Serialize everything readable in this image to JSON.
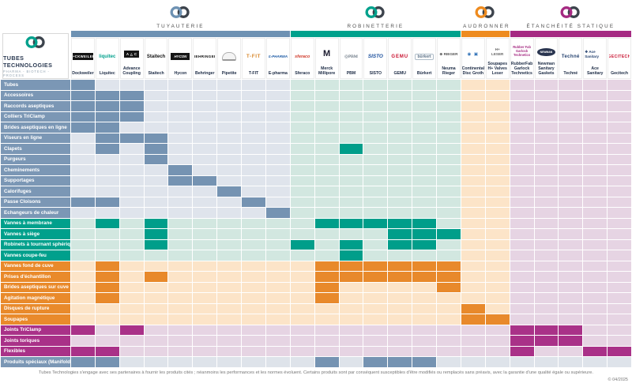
{
  "company": {
    "name": "TUBES TECHNOLOGIES",
    "tagline": "PHARMA - BIOTECH - PROCESS"
  },
  "colors": {
    "logo_dark": "#3c434c",
    "neutral": {
      "label": "#7b97b5",
      "fill": "#7593b2",
      "light": "#dee3ea"
    }
  },
  "sections": [
    {
      "title": "TUYAUTERIE",
      "bar": "#6e92b3",
      "label": "#7b97b5",
      "fill": "#7593b2",
      "light": "#dfe4ec",
      "col_start": 1,
      "col_count": 9
    },
    {
      "title": "ROBINETTERIE",
      "bar": "#00a18c",
      "label": "#00a08c",
      "fill": "#009e8a",
      "light": "#d2e7e0",
      "col_start": 10,
      "col_count": 7
    },
    {
      "title": "CHAUDRONNERIE",
      "bar": "#ee8b1f",
      "label": "#e98a2b",
      "fill": "#e8892b",
      "light": "#fce4c8",
      "col_start": 17,
      "col_count": 2
    },
    {
      "title": "ÉTANCHÉITÉ STATIQUE",
      "bar": "#a52a82",
      "label": "#a93188",
      "fill": "#a93188",
      "light": "#e6d4e3",
      "col_start": 19,
      "col_count": 5
    }
  ],
  "columns": [
    {
      "label": "Dockweiler",
      "section": 0,
      "logo_text": "D•CKWEILER",
      "logo_variant": "blackbox"
    },
    {
      "label": "Liquitec",
      "section": 0,
      "logo_text": "liquitec",
      "logo_variant": "teal"
    },
    {
      "label": "Advance Coupling",
      "section": 0,
      "logo_text": "A △ C",
      "logo_variant": "blackbox"
    },
    {
      "label": "Staitech",
      "section": 0,
      "logo_text": "Staitech",
      "logo_variant": "dark"
    },
    {
      "label": "Hycon",
      "section": 0,
      "logo_text": "HYCON",
      "logo_variant": "blackbox-italic"
    },
    {
      "label": "Behringer",
      "section": 0,
      "logo_text": "BEHRINGER",
      "logo_variant": "darkcaps"
    },
    {
      "label": "Pipetite",
      "section": 0,
      "logo_text": "",
      "logo_variant": "pipetite"
    },
    {
      "label": "T-FIT",
      "section": 0,
      "logo_text": "T-FIT",
      "logo_variant": "tfit"
    },
    {
      "label": "E-pharma",
      "section": 0,
      "logo_text": "Ɛ-PHARMA",
      "logo_variant": "blue-italic"
    },
    {
      "label": "Sferaco",
      "section": 1,
      "logo_text": "sferaco",
      "logo_variant": "red-italic"
    },
    {
      "label": "Merck Millipore",
      "section": 1,
      "logo_text": "M",
      "logo_variant": "merck"
    },
    {
      "label": "PBM",
      "section": 1,
      "logo_text": "◎PBM",
      "logo_variant": "pbm"
    },
    {
      "label": "SISTO",
      "section": 1,
      "logo_text": "SISTO",
      "logo_variant": "sisto"
    },
    {
      "label": "GEMU",
      "section": 1,
      "logo_text": "GEMU",
      "logo_variant": "gemu"
    },
    {
      "label": "Bürkert",
      "section": 1,
      "logo_text": "bürkert",
      "logo_variant": "burkert"
    },
    {
      "label": "Neuma Rieger",
      "section": 1,
      "logo_text": "⊕ RIEGER",
      "logo_variant": "rieger"
    },
    {
      "label": "Continental Disc Groth",
      "section": 2,
      "logo_text": "◉ ▣",
      "logo_variant": "contdisc"
    },
    {
      "label": "Soupapes H+ Valves Leser",
      "section": 2,
      "logo_text": "H+\nLESER",
      "logo_variant": "leser"
    },
    {
      "label": "RubberFab Garlock Technetics",
      "section": 3,
      "logo_text": "Rubber Fab\nGarlock\nTechnetics",
      "logo_variant": "magenta-stack"
    },
    {
      "label": "Newman Sanitary Gaskets",
      "section": 3,
      "logo_text": "NEWMAN",
      "logo_variant": "newman"
    },
    {
      "label": "Techné",
      "section": 3,
      "logo_text": "Techné",
      "logo_variant": "techne"
    },
    {
      "label": "Ace Sanitary",
      "section": 3,
      "logo_text": "❖ Ace Sanitary",
      "logo_variant": "ace"
    },
    {
      "label": "Gecitech",
      "section": 3,
      "logo_text": "GECITECH",
      "logo_variant": "gecitech"
    }
  ],
  "rows": [
    {
      "label": "Tubes",
      "section": 0,
      "filled": [
        1
      ]
    },
    {
      "label": "Accessoires",
      "section": 0,
      "filled": [
        1,
        2,
        3
      ]
    },
    {
      "label": "Raccords aseptiques",
      "section": 0,
      "filled": [
        1,
        2,
        3
      ]
    },
    {
      "label": "Colliers TriClamp",
      "section": 0,
      "filled": [
        1,
        2,
        3
      ]
    },
    {
      "label": "Brides aseptiques en ligne",
      "section": 0,
      "filled": [
        1,
        2
      ]
    },
    {
      "label": "Viseurs en ligne",
      "section": 0,
      "filled": [
        2,
        3,
        4
      ]
    },
    {
      "label": "Clapets",
      "section": 0,
      "filled": [
        2,
        4,
        12
      ]
    },
    {
      "label": "Purgeurs",
      "section": 0,
      "filled": [
        4
      ]
    },
    {
      "label": "Cheminements",
      "section": 0,
      "filled": [
        5
      ]
    },
    {
      "label": "Supportages",
      "section": 0,
      "filled": [
        5,
        6
      ]
    },
    {
      "label": "Calorifuges",
      "section": 0,
      "filled": [
        7
      ]
    },
    {
      "label": "Passe Cloisons",
      "section": 0,
      "filled": [
        1,
        2,
        8
      ]
    },
    {
      "label": "Echangeurs de chaleur",
      "section": 0,
      "filled": [
        9
      ]
    },
    {
      "label": "Vannes à membrane",
      "section": 1,
      "filled": [
        2,
        4,
        11,
        12,
        13,
        14,
        15
      ]
    },
    {
      "label": "Vannes à siège",
      "section": 1,
      "filled": [
        4,
        14,
        15,
        16
      ]
    },
    {
      "label": "Robinets à tournant sphérique",
      "section": 1,
      "filled": [
        4,
        10,
        12,
        14,
        15
      ]
    },
    {
      "label": "Vannes coupe-feu",
      "section": 1,
      "filled": [
        12
      ]
    },
    {
      "label": "Vannes fond de cuve",
      "section": 2,
      "filled": [
        2,
        11,
        12,
        13,
        14,
        15,
        16
      ]
    },
    {
      "label": "Prises d'échantillon",
      "section": 2,
      "filled": [
        2,
        4,
        11,
        12,
        13,
        14,
        15,
        16
      ]
    },
    {
      "label": "Brides aseptiques sur cuve",
      "section": 2,
      "filled": [
        2,
        11,
        16
      ]
    },
    {
      "label": "Agitation magnétique",
      "section": 2,
      "filled": [
        2,
        11
      ]
    },
    {
      "label": "Disques de rupture",
      "section": 2,
      "filled": [
        17
      ]
    },
    {
      "label": "Soupapes",
      "section": 2,
      "filled": [
        17,
        18
      ]
    },
    {
      "label": "Joints TriClamp",
      "section": 3,
      "filled": [
        1,
        3,
        19,
        20,
        21
      ]
    },
    {
      "label": "Joints toriques",
      "section": 3,
      "filled": [
        19,
        20,
        21
      ]
    },
    {
      "label": "Flexibles",
      "section": 3,
      "filled": [
        1,
        2,
        19,
        22,
        23
      ]
    },
    {
      "label": "Produits spéciaux (Manifold, skid,...)",
      "section": -1,
      "filled": [
        1,
        2,
        11,
        13,
        14,
        15
      ]
    }
  ],
  "footer": {
    "disclaimer": "Tubes Technologies s'engage avec ses partenaires à fournir les produits cités ; néanmoins les performances et les normes évoluent. Certains produits sont par conséquent susceptibles d'être modifiés ou remplacés sans préavis, avec la garantie d'une qualité égale ou supérieure.",
    "copyright": "© 04/2025"
  }
}
